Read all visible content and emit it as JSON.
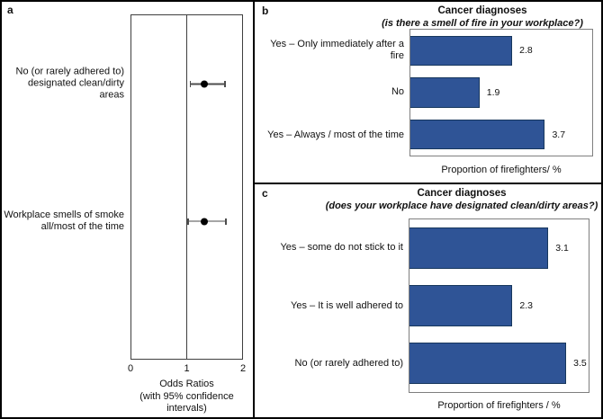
{
  "panels": {
    "a": {
      "label": "a",
      "row_label_lines": [
        [
          "No (or rarely adhered to)",
          "designated clean/dirty areas"
        ],
        [
          "Workplace smells of smoke",
          "all/most of the time"
        ]
      ],
      "axis_label_lines": [
        "Odds Ratios",
        "(with 95% confidence",
        "intervals)"
      ]
    },
    "b": {
      "label": "b"
    },
    "c": {
      "label": "c"
    }
  },
  "colors": {
    "bar_fill": "#2F5496",
    "bar_border": "#17375D",
    "plot_border": "#7f7f7f",
    "forest_line": "#4d4d4d"
  },
  "chart_data": [
    {
      "type": "scatter",
      "subtype": "forest-plot",
      "panel": "a",
      "xlabel": "Odds Ratios (with 95% confidence intervals)",
      "xlim": [
        0,
        2
      ],
      "xticks": [
        0,
        1,
        2
      ],
      "reference_line_x": 1,
      "series": [
        {
          "name": "No (or rarely adhered to) designated clean/dirty areas",
          "x": 1.32,
          "ci_low": 1.05,
          "ci_high": 1.7
        },
        {
          "name": "Workplace smells of smoke all/most of the time",
          "x": 1.31,
          "ci_low": 1.01,
          "ci_high": 1.72
        }
      ]
    },
    {
      "type": "bar",
      "panel": "b",
      "orientation": "horizontal",
      "title": "Cancer diagnoses",
      "subtitle": "(is there a smell of fire in your workplace?)",
      "categories": [
        "Yes – Only immediately after a fire",
        "No",
        "Yes – Always / most of the time"
      ],
      "values": [
        2.8,
        1.9,
        3.7
      ],
      "data_labels": [
        "2.8",
        "1.9",
        "3.7"
      ],
      "xlabel": "Proportion of  firefighters/ %",
      "xlim": [
        0,
        5
      ],
      "grid": false,
      "legend": false,
      "bar_color": "#2F5496"
    },
    {
      "type": "bar",
      "panel": "c",
      "orientation": "horizontal",
      "title": "Cancer diagnoses",
      "subtitle": "(does your workplace have designated clean/dirty areas?)",
      "categories": [
        "Yes – some do not stick to it",
        "Yes – It is well adhered to",
        "No (or rarely adhered to)"
      ],
      "values": [
        3.1,
        2.3,
        3.5
      ],
      "data_labels": [
        "3.1",
        "2.3",
        "3.5"
      ],
      "xlabel": "Proportion of firefighters / %",
      "xlim": [
        0,
        4
      ],
      "grid": false,
      "legend": false,
      "bar_color": "#2F5496"
    }
  ]
}
